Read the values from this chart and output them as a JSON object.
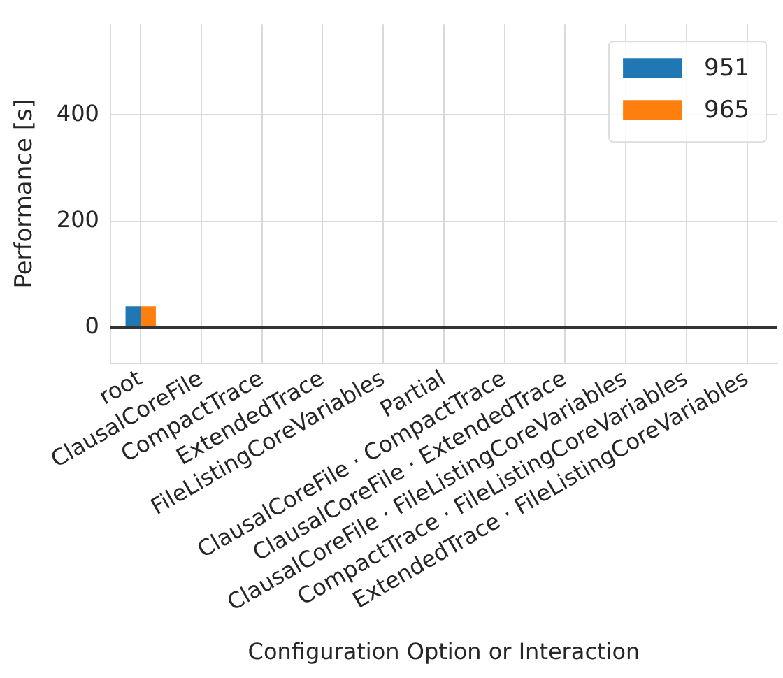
{
  "chart_data": {
    "type": "bar",
    "xlabel": "Configuration Option or Interaction",
    "ylabel": "Performance [s]",
    "categories": [
      "root",
      "ClausalCoreFile",
      "CompactTrace",
      "ExtendedTrace",
      "FileListingCoreVariables",
      "Partial",
      "ClausalCoreFile · CompactTrace",
      "ClausalCoreFile · ExtendedTrace",
      "ClausalCoreFile · FileListingCoreVariables",
      "CompactTrace · FileListingCoreVariables",
      "ExtendedTrace · FileListingCoreVariables"
    ],
    "series": [
      {
        "name": "951",
        "color": "#1f77b4",
        "values": [
          40,
          0,
          0,
          0,
          0,
          0,
          0,
          0,
          0,
          0,
          0
        ]
      },
      {
        "name": "965",
        "color": "#ff7f0e",
        "values": [
          40,
          0,
          0,
          0,
          0,
          0,
          0,
          0,
          0,
          0,
          0
        ]
      }
    ],
    "ylim": [
      -67,
      570
    ],
    "yticks": [
      0,
      200,
      400
    ],
    "grid": true,
    "legend": "top right",
    "ref_lines": [
      {
        "axis": "y",
        "value": 0,
        "color": "#333333"
      }
    ]
  }
}
